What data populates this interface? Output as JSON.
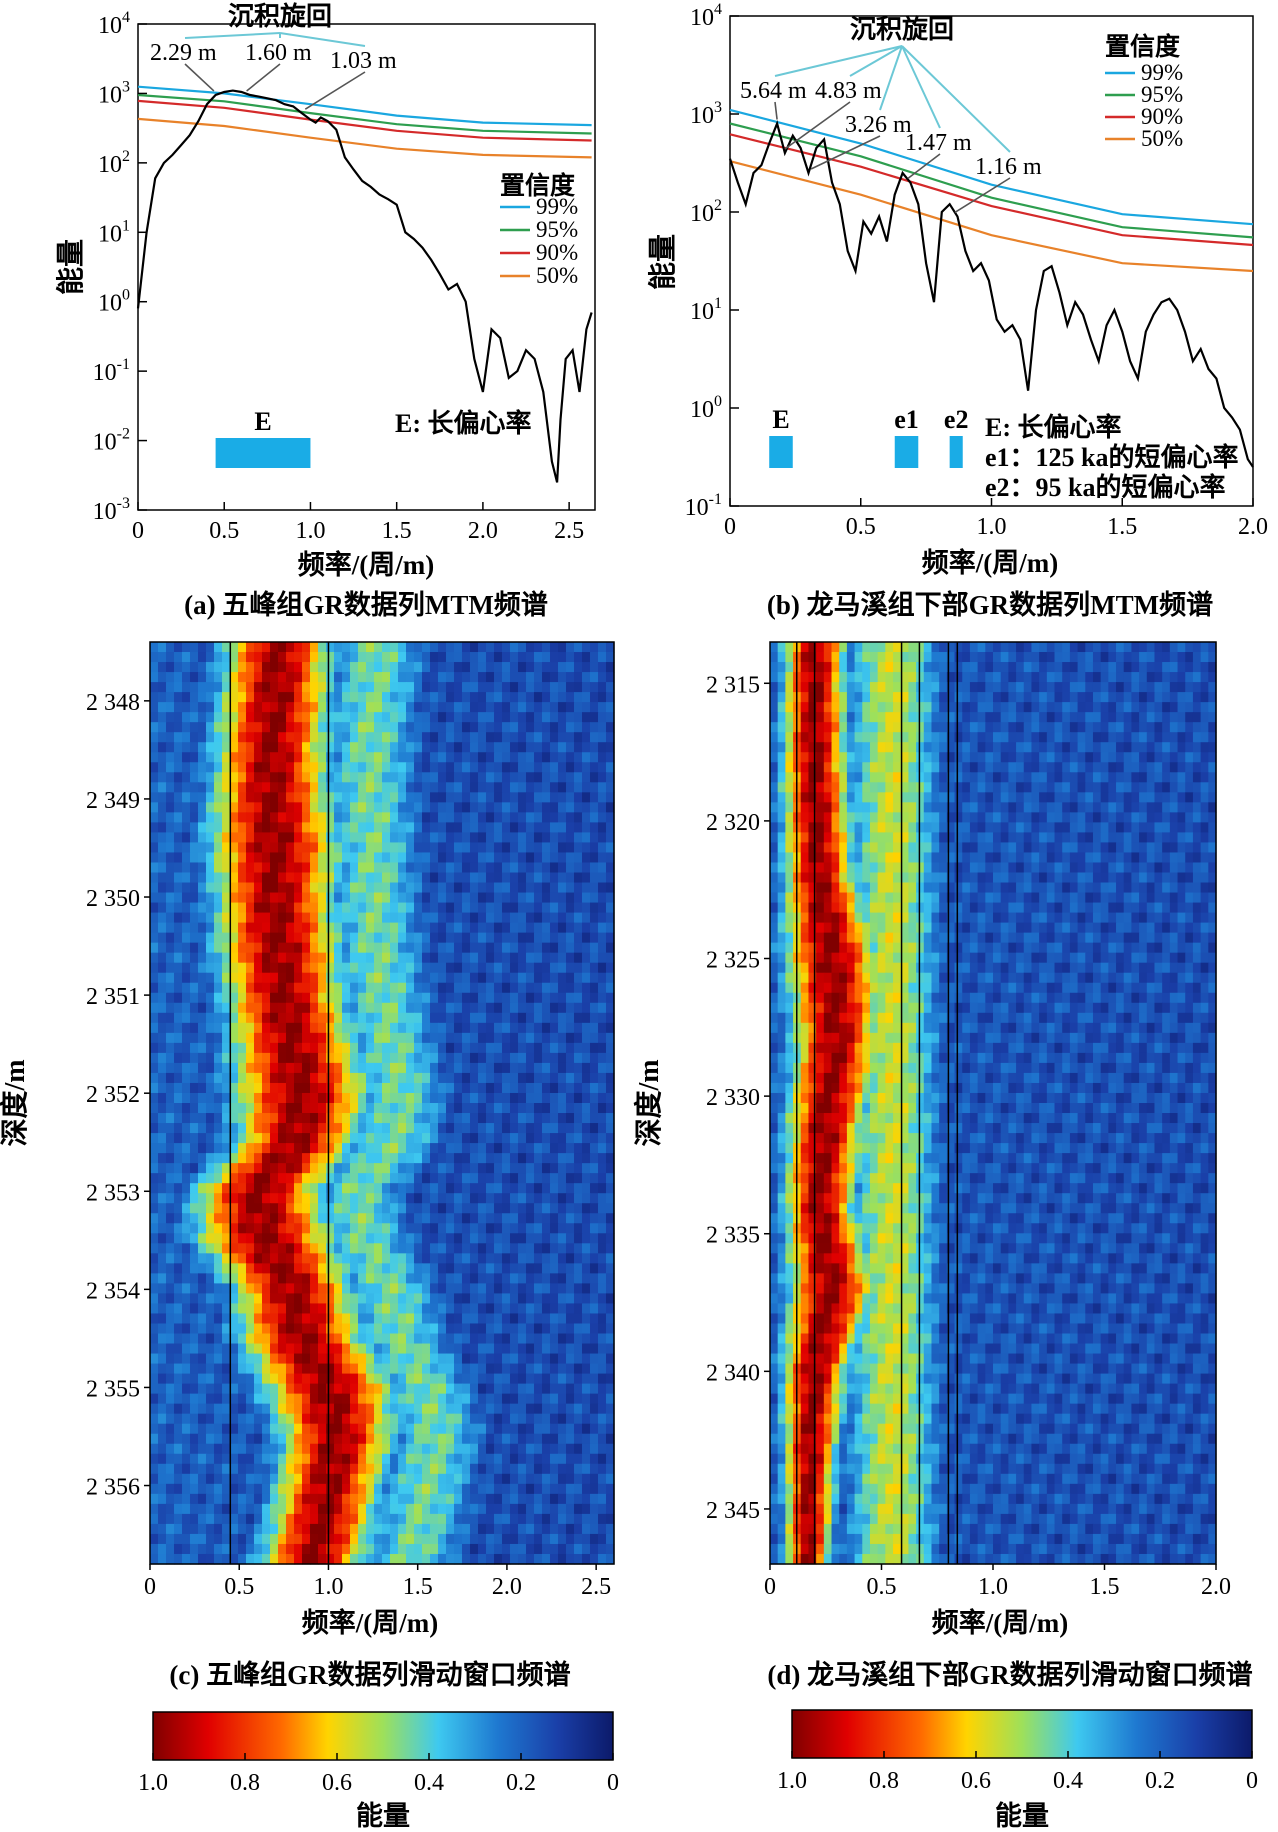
{
  "chart_data": [
    {
      "id": "a",
      "type": "line",
      "caption": "(a) 五峰组GR数据列MTM频谱",
      "xlabel": "频率/(周/m)",
      "ylabel": "能量",
      "xlim": [
        0,
        2.65
      ],
      "ylim": [
        0.001,
        10000
      ],
      "yscale": "log",
      "xticks": [
        "0",
        "0.5",
        "1.0",
        "1.5",
        "2.0",
        "2.5"
      ],
      "yticks": [
        {
          "base": "10",
          "exp": "4"
        },
        {
          "base": "10",
          "exp": "3"
        },
        {
          "base": "10",
          "exp": "2"
        },
        {
          "base": "10",
          "exp": "1"
        },
        {
          "base": "10",
          "exp": "0"
        },
        {
          "base": "10",
          "exp": "-1"
        },
        {
          "base": "10",
          "exp": "-2"
        },
        {
          "base": "10",
          "exp": "-3"
        }
      ],
      "legend": {
        "title": "置信度",
        "placement": "middle-right",
        "items": [
          "99%",
          "95%",
          "90%",
          "50%"
        ]
      },
      "series": [
        {
          "key": "spectrum",
          "color": "#000000",
          "x": [
            0,
            0.05,
            0.1,
            0.15,
            0.2,
            0.25,
            0.3,
            0.35,
            0.4,
            0.45,
            0.5,
            0.55,
            0.6,
            0.65,
            0.7,
            0.75,
            0.8,
            0.85,
            0.9,
            0.95,
            1.0,
            1.03,
            1.06,
            1.1,
            1.15,
            1.2,
            1.25,
            1.3,
            1.35,
            1.4,
            1.45,
            1.5,
            1.55,
            1.6,
            1.65,
            1.7,
            1.75,
            1.8,
            1.85,
            1.9,
            1.95,
            2.0,
            2.05,
            2.1,
            2.15,
            2.2,
            2.25,
            2.3,
            2.35,
            2.4,
            2.43,
            2.45,
            2.48,
            2.52,
            2.56,
            2.6,
            2.63
          ],
          "y": [
            0.8,
            10,
            60,
            100,
            130,
            180,
            250,
            400,
            700,
            950,
            1050,
            1100,
            1050,
            950,
            900,
            850,
            800,
            700,
            650,
            520,
            420,
            380,
            450,
            400,
            300,
            120,
            80,
            55,
            45,
            35,
            30,
            25,
            10,
            8,
            6,
            4,
            2.5,
            1.5,
            1.8,
            1,
            0.15,
            0.05,
            0.4,
            0.3,
            0.08,
            0.1,
            0.2,
            0.15,
            0.05,
            0.005,
            0.0025,
            0.02,
            0.15,
            0.2,
            0.05,
            0.4,
            0.7
          ]
        },
        {
          "key": "c99",
          "name": "99%",
          "color": "#1aa7e0",
          "x": [
            0,
            0.5,
            1.0,
            1.5,
            2.0,
            2.63
          ],
          "y": [
            1250,
            1000,
            700,
            480,
            380,
            350
          ]
        },
        {
          "key": "c95",
          "name": "95%",
          "color": "#2e9e4f",
          "x": [
            0,
            0.5,
            1.0,
            1.5,
            2.0,
            2.63
          ],
          "y": [
            950,
            770,
            520,
            360,
            290,
            265
          ]
        },
        {
          "key": "c90",
          "name": "90%",
          "color": "#d42a2a",
          "x": [
            0,
            0.5,
            1.0,
            1.5,
            2.0,
            2.63
          ],
          "y": [
            780,
            620,
            420,
            290,
            230,
            210
          ]
        },
        {
          "key": "c50",
          "name": "50%",
          "color": "#e8822a",
          "x": [
            0,
            0.5,
            1.0,
            1.5,
            2.0,
            2.63
          ],
          "y": [
            430,
            340,
            230,
            160,
            130,
            120
          ]
        }
      ],
      "band_color": "#1aace6",
      "bands": [
        {
          "label": "E",
          "x0": 0.45,
          "x1": 1.0
        }
      ],
      "band_note": "E: 长偏心率",
      "cycle_title": "沉积旋回",
      "cycles": [
        {
          "label": "2.29 m",
          "x": 0.44
        },
        {
          "label": "1.60 m",
          "x": 0.63
        },
        {
          "label": "1.03 m",
          "x": 0.97
        }
      ]
    },
    {
      "id": "b",
      "type": "line",
      "caption": "(b) 龙马溪组下部GR数据列MTM频谱",
      "xlabel": "频率/(周/m)",
      "ylabel": "能量",
      "xlim": [
        0,
        2.0
      ],
      "ylim": [
        0.1,
        10000
      ],
      "yscale": "log",
      "xticks": [
        "0",
        "0.5",
        "1.0",
        "1.5",
        "2.0"
      ],
      "yticks": [
        {
          "base": "10",
          "exp": "4"
        },
        {
          "base": "10",
          "exp": "3"
        },
        {
          "base": "10",
          "exp": "2"
        },
        {
          "base": "10",
          "exp": "1"
        },
        {
          "base": "10",
          "exp": "0"
        },
        {
          "base": "10",
          "exp": "-1"
        }
      ],
      "legend": {
        "title": "置信度",
        "placement": "top-right",
        "items": [
          "99%",
          "95%",
          "90%",
          "50%"
        ]
      },
      "series": [
        {
          "key": "spectrum",
          "color": "#000000",
          "x": [
            0,
            0.03,
            0.06,
            0.09,
            0.12,
            0.15,
            0.18,
            0.21,
            0.24,
            0.27,
            0.3,
            0.33,
            0.36,
            0.39,
            0.42,
            0.45,
            0.48,
            0.51,
            0.54,
            0.57,
            0.6,
            0.63,
            0.66,
            0.69,
            0.72,
            0.75,
            0.78,
            0.81,
            0.84,
            0.87,
            0.9,
            0.93,
            0.96,
            0.99,
            1.02,
            1.05,
            1.08,
            1.11,
            1.14,
            1.17,
            1.2,
            1.23,
            1.26,
            1.29,
            1.32,
            1.35,
            1.38,
            1.41,
            1.44,
            1.47,
            1.5,
            1.53,
            1.56,
            1.59,
            1.62,
            1.65,
            1.68,
            1.71,
            1.74,
            1.77,
            1.8,
            1.83,
            1.86,
            1.89,
            1.92,
            1.95,
            1.98,
            2.0
          ],
          "y": [
            350,
            200,
            120,
            250,
            300,
            500,
            800,
            400,
            600,
            450,
            250,
            450,
            550,
            200,
            120,
            40,
            25,
            80,
            60,
            90,
            50,
            150,
            250,
            200,
            120,
            30,
            12,
            100,
            120,
            90,
            40,
            25,
            30,
            20,
            8,
            6,
            7,
            5,
            1.5,
            10,
            25,
            28,
            15,
            7,
            12,
            9,
            5,
            3,
            7,
            10,
            6,
            3,
            2,
            6,
            9,
            12,
            13,
            10,
            6,
            3,
            4,
            2.5,
            2,
            1,
            0.8,
            0.6,
            0.3,
            0.25
          ]
        },
        {
          "key": "c99",
          "name": "99%",
          "color": "#1aa7e0",
          "x": [
            0,
            0.5,
            1.0,
            1.5,
            2.0
          ],
          "y": [
            1100,
            500,
            190,
            95,
            75
          ]
        },
        {
          "key": "c95",
          "name": "95%",
          "color": "#2e9e4f",
          "x": [
            0,
            0.5,
            1.0,
            1.5,
            2.0
          ],
          "y": [
            800,
            370,
            140,
            70,
            55
          ]
        },
        {
          "key": "c90",
          "name": "90%",
          "color": "#d42a2a",
          "x": [
            0,
            0.5,
            1.0,
            1.5,
            2.0
          ],
          "y": [
            620,
            290,
            115,
            58,
            46
          ]
        },
        {
          "key": "c50",
          "name": "50%",
          "color": "#e8822a",
          "x": [
            0,
            0.5,
            1.0,
            1.5,
            2.0
          ],
          "y": [
            330,
            150,
            58,
            30,
            25
          ]
        }
      ],
      "band_color": "#1aace6",
      "bands": [
        {
          "label": "E",
          "x0": 0.15,
          "x1": 0.24
        },
        {
          "label": "e1",
          "x0": 0.63,
          "x1": 0.72
        },
        {
          "label": "e2",
          "x0": 0.84,
          "x1": 0.89
        }
      ],
      "band_notes": [
        "E: 长偏心率",
        "e1：125 ka的短偏心率",
        "e2：95 ka的短偏心率"
      ],
      "cycle_title": "沉积旋回",
      "cycles": [
        {
          "label": "5.64 m",
          "x": 0.18
        },
        {
          "label": "4.83 m",
          "x": 0.21
        },
        {
          "label": "3.26 m",
          "x": 0.31
        },
        {
          "label": "1.47 m",
          "x": 0.68
        },
        {
          "label": "1.16 m",
          "x": 0.86
        }
      ]
    },
    {
      "id": "c",
      "type": "heatmap",
      "caption": "(c) 五峰组GR数据列滑动窗口频谱",
      "xlabel": "频率/(周/m)",
      "ylabel": "深度/m",
      "xlim": [
        0,
        2.6
      ],
      "ylim": [
        2347.4,
        2356.8
      ],
      "xticks": [
        "0",
        "0.5",
        "1.0",
        "1.5",
        "2.0",
        "2.5"
      ],
      "yticks": [
        "2 348",
        "2 349",
        "2 350",
        "2 351",
        "2 352",
        "2 353",
        "2 354",
        "2 355",
        "2 356"
      ],
      "ridges": {
        "depth": [
          2347.4,
          2348.0,
          2348.5,
          2349.0,
          2349.5,
          2350.0,
          2350.5,
          2351.0,
          2351.5,
          2352.0,
          2352.5,
          2353.0,
          2353.5,
          2354.0,
          2354.5,
          2355.0,
          2355.5,
          2356.0,
          2356.5,
          2356.8
        ],
        "center": [
          0.72,
          0.7,
          0.68,
          0.68,
          0.7,
          0.7,
          0.72,
          0.75,
          0.8,
          0.85,
          0.82,
          0.6,
          0.65,
          0.8,
          0.85,
          1.0,
          1.05,
          1.0,
          0.95,
          0.9
        ],
        "width": [
          0.3,
          0.32,
          0.32,
          0.34,
          0.38,
          0.34,
          0.36,
          0.34,
          0.36,
          0.4,
          0.34,
          0.36,
          0.4,
          0.34,
          0.36,
          0.38,
          0.32,
          0.3,
          0.3,
          0.3
        ]
      },
      "marker_lines_x": [
        0.45,
        1.0
      ]
    },
    {
      "id": "d",
      "type": "heatmap",
      "caption": "(d) 龙马溪组下部GR数据列滑动窗口频谱",
      "xlabel": "频率/(周/m)",
      "ylabel": "深度/m",
      "xlim": [
        0,
        2.0
      ],
      "ylim": [
        2313.5,
        2347.0
      ],
      "xticks": [
        "0",
        "0.5",
        "1.0",
        "1.5",
        "2.0"
      ],
      "yticks": [
        "2 315",
        "2 320",
        "2 325",
        "2 330",
        "2 335",
        "2 340",
        "2 345"
      ],
      "ridges": {
        "depth": [
          2313.5,
          2318.0,
          2322.0,
          2325.0,
          2328.0,
          2331.0,
          2334.0,
          2337.0,
          2340.0,
          2343.0,
          2347.0
        ],
        "center": [
          0.2,
          0.2,
          0.22,
          0.28,
          0.3,
          0.25,
          0.22,
          0.28,
          0.2,
          0.18,
          0.17
        ],
        "width": [
          0.14,
          0.15,
          0.16,
          0.22,
          0.2,
          0.18,
          0.16,
          0.2,
          0.15,
          0.12,
          0.1
        ]
      },
      "marker_lines_x": [
        0.12,
        0.2,
        0.59,
        0.67,
        0.8,
        0.84
      ]
    }
  ],
  "colorbar": {
    "label": "能量",
    "ticks": [
      "1.0",
      "0.8",
      "0.6",
      "0.4",
      "0.2",
      "0"
    ]
  }
}
